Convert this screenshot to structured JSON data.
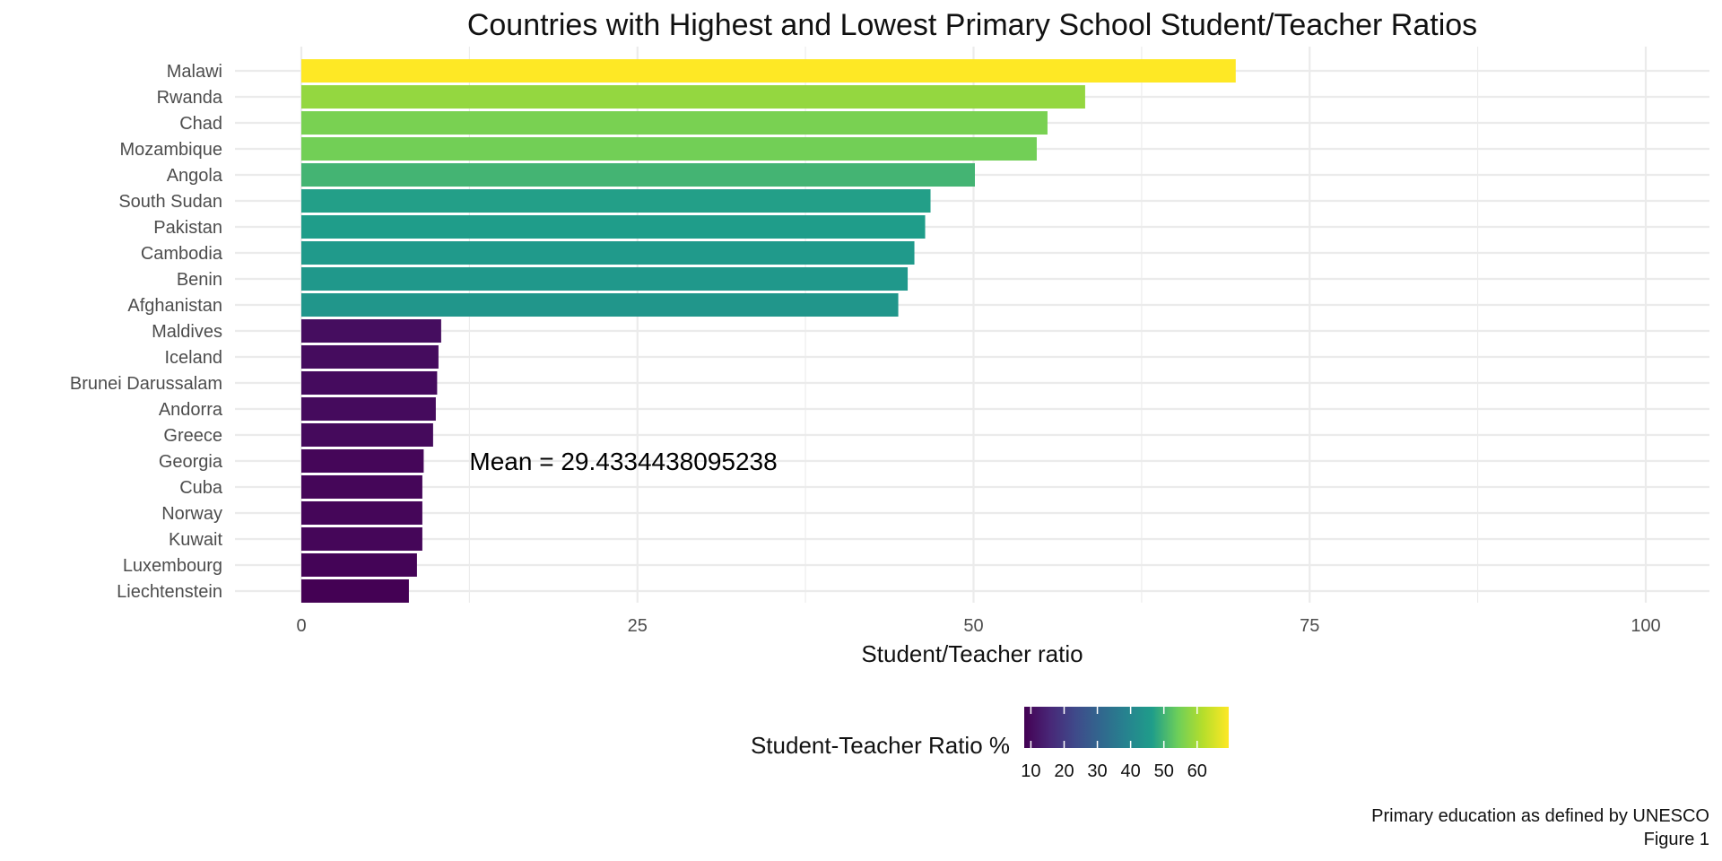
{
  "chart_data": {
    "type": "bar",
    "orientation": "horizontal",
    "title": "Countries with Highest and Lowest Primary School Student/Teacher Ratios",
    "xlabel": "Student/Teacher ratio",
    "ylabel": "",
    "xlim": [
      0,
      100
    ],
    "x_ticks": [
      0,
      25,
      50,
      75,
      100
    ],
    "grid": true,
    "categories": [
      "Malawi",
      "Rwanda",
      "Chad",
      "Mozambique",
      "Angola",
      "South Sudan",
      "Pakistan",
      "Cambodia",
      "Benin",
      "Afghanistan",
      "Maldives",
      "Iceland",
      "Brunei Darussalam",
      "Andorra",
      "Greece",
      "Georgia",
      "Cuba",
      "Norway",
      "Kuwait",
      "Luxembourg",
      "Liechtenstein"
    ],
    "values": [
      69.5,
      58.3,
      55.5,
      54.7,
      50.1,
      46.8,
      46.4,
      45.6,
      45.1,
      44.4,
      10.4,
      10.2,
      10.1,
      10.0,
      9.8,
      9.1,
      9.0,
      9.0,
      9.0,
      8.6,
      8.0
    ],
    "annotation": {
      "text": "Mean =  29.4334438095238",
      "x": 12.5,
      "category": "Georgia"
    },
    "legend": {
      "title": "Student-Teacher Ratio %",
      "position": "bottom",
      "ticks": [
        10,
        20,
        30,
        40,
        50,
        60
      ],
      "range": [
        8.0,
        69.5
      ],
      "colors": [
        "#440154",
        "#482777",
        "#3F4A8A",
        "#31678E",
        "#26838F",
        "#1F9D8A",
        "#6CCE5A",
        "#B6DE2B",
        "#FEE825"
      ]
    },
    "caption": [
      "Primary education as defined by UNESCO",
      "Figure 1"
    ]
  }
}
